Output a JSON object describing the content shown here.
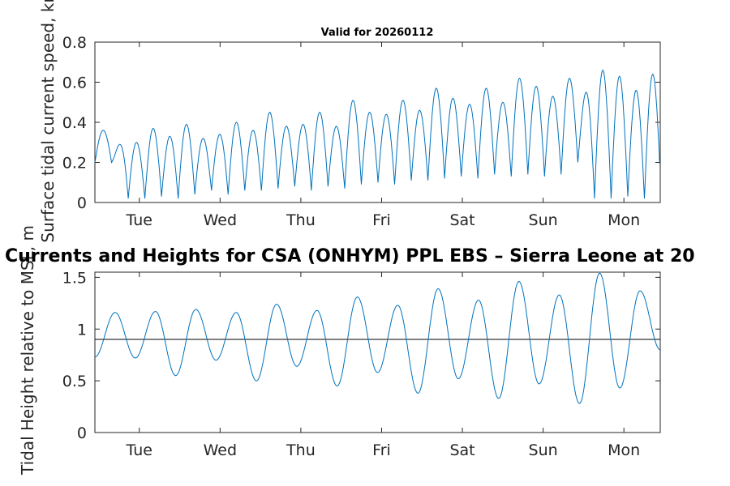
{
  "chart_data": [
    {
      "type": "line",
      "title": "Valid for 20260112",
      "ylabel": "Surface tidal current speed, knots",
      "xlabel": "",
      "xlim": [
        0,
        7
      ],
      "ylim": [
        0,
        0.8
      ],
      "yticks": [
        0,
        0.2,
        0.4,
        0.6,
        0.8
      ],
      "ytick_labels": [
        "0",
        "0.2",
        "0.4",
        "0.6",
        "0.8"
      ],
      "xticks": [
        0.55,
        1.55,
        2.55,
        3.55,
        4.55,
        5.55,
        6.55
      ],
      "xtick_labels": [
        "Tue",
        "Wed",
        "Thu",
        "Fri",
        "Sat",
        "Sun",
        "Mon"
      ],
      "line_color": "#0072BD",
      "series": [
        {
          "name": "Surface tidal current speed",
          "peaks": [
            0.36,
            0.29,
            0.3,
            0.37,
            0.33,
            0.39,
            0.32,
            0.34,
            0.4,
            0.36,
            0.45,
            0.38,
            0.39,
            0.45,
            0.38,
            0.51,
            0.45,
            0.44,
            0.51,
            0.46,
            0.57,
            0.52,
            0.49,
            0.57,
            0.5,
            0.62,
            0.58,
            0.53,
            0.62,
            0.55,
            0.66,
            0.63,
            0.56,
            0.64
          ],
          "troughs": [
            0.2,
            0.02,
            0.02,
            0.03,
            0.02,
            0.04,
            0.06,
            0.04,
            0.06,
            0.06,
            0.07,
            0.08,
            0.06,
            0.08,
            0.07,
            0.09,
            0.1,
            0.09,
            0.11,
            0.11,
            0.12,
            0.13,
            0.12,
            0.14,
            0.13,
            0.14,
            0.13,
            0.14
          ]
        }
      ]
    },
    {
      "type": "line",
      "title": "Currents and Heights for CSA (ONHYM) PPL EBS  – Sierra Leone at 20",
      "ylabel": "Tidal Height relative to MSL, m",
      "xlabel": "",
      "xlim": [
        0,
        7
      ],
      "ylim": [
        0,
        1.55
      ],
      "yticks": [
        0,
        0.5,
        1,
        1.5
      ],
      "ytick_labels": [
        "0",
        "0.5",
        "1",
        "1.5"
      ],
      "xticks": [
        0.55,
        1.55,
        2.55,
        3.55,
        4.55,
        5.55,
        6.55
      ],
      "xtick_labels": [
        "Tue",
        "Wed",
        "Thu",
        "Fri",
        "Sat",
        "Sun",
        "Mon"
      ],
      "line_color": "#0072BD",
      "reference_line": 0.9,
      "series": [
        {
          "name": "Tidal height",
          "extrema": [
            0.73,
            1.16,
            0.72,
            1.17,
            0.55,
            1.19,
            0.7,
            1.16,
            0.5,
            1.24,
            0.64,
            1.18,
            0.45,
            1.31,
            0.58,
            1.23,
            0.38,
            1.39,
            0.52,
            1.28,
            0.33,
            1.46,
            0.47,
            1.33,
            0.28,
            1.54,
            0.43,
            1.37,
            0.8
          ]
        }
      ]
    }
  ]
}
